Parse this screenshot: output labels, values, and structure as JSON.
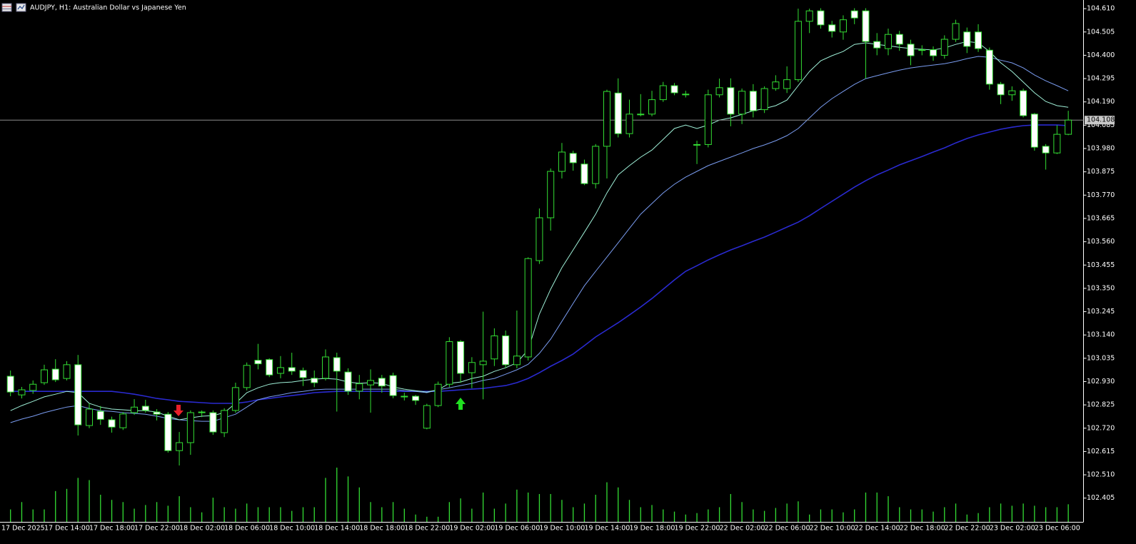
{
  "header": {
    "title": "AUDJPY, H1:  Australian Dollar vs Japanese Yen"
  },
  "chart_data": {
    "type": "candlestick",
    "categories": [
      "17 Dec 2025",
      null,
      null,
      "17 Dec 14:00",
      null,
      null,
      null,
      "17 Dec 18:00",
      null,
      null,
      null,
      "17 Dec 22:00",
      null,
      null,
      null,
      "18 Dec 02:00",
      null,
      null,
      null,
      "18 Dec 06:00",
      null,
      null,
      null,
      "18 Dec 10:00",
      null,
      null,
      null,
      "18 Dec 14:00",
      null,
      null,
      null,
      "18 Dec 18:00",
      null,
      null,
      null,
      "18 Dec 22:00",
      null,
      null,
      null,
      "19 Dec 02:00",
      null,
      null,
      null,
      "19 Dec 06:00",
      null,
      null,
      null,
      "19 Dec 10:00",
      null,
      null,
      null,
      "19 Dec 14:00",
      null,
      null,
      null,
      "19 Dec 18:00",
      null,
      null,
      null,
      "19 Dec 22:00",
      null,
      null,
      null,
      "22 Dec 02:00",
      null,
      null,
      null,
      "22 Dec 06:00",
      null,
      null,
      null,
      "22 Dec 10:00",
      null,
      null,
      null,
      "22 Dec 14:00",
      null,
      null,
      null,
      "22 Dec 18:00",
      null,
      null,
      null,
      "22 Dec 22:00",
      null,
      null,
      null,
      "23 Dec 02:00",
      null,
      null,
      null,
      "23 Dec 06:00",
      null,
      null,
      null
    ],
    "open": [
      102.954,
      102.87,
      102.89,
      102.925,
      102.986,
      102.944,
      103.006,
      102.732,
      102.796,
      102.758,
      102.722,
      102.79,
      102.819,
      102.793,
      102.783,
      102.619,
      102.655,
      102.79,
      102.79,
      102.7,
      102.8,
      102.903,
      103.026,
      103.029,
      102.967,
      102.993,
      102.98,
      102.945,
      102.945,
      103.038,
      102.973,
      102.887,
      102.915,
      102.945,
      102.957,
      102.864,
      102.864,
      102.72,
      102.822,
      102.918,
      103.11,
      102.97,
      103.006,
      103.032,
      103.136,
      103.006,
      103.041,
      103.475,
      103.668,
      103.877,
      103.958,
      103.91,
      103.822,
      103.99,
      104.23,
      104.047,
      104.135,
      104.135,
      104.2,
      104.263,
      104.225,
      103.998,
      103.998,
      104.222,
      104.254,
      104.135,
      104.238,
      104.155,
      104.25,
      104.25,
      104.29,
      104.553,
      104.6,
      104.537,
      104.505,
      104.6,
      104.6,
      104.462,
      104.43,
      104.494,
      104.45,
      104.425,
      104.425,
      104.4,
      104.472,
      104.505,
      104.505,
      104.423,
      104.27,
      104.222,
      104.24,
      104.135,
      103.99,
      103.96,
      104.044
    ],
    "high": [
      102.98,
      102.906,
      102.935,
      103.006,
      103.031,
      103.022,
      103.05,
      102.832,
      102.82,
      102.772,
      102.793,
      102.851,
      102.848,
      102.806,
      102.793,
      102.703,
      102.8,
      102.8,
      102.8,
      102.81,
      102.925,
      103.016,
      103.1,
      103.035,
      103.045,
      103.06,
      102.993,
      102.98,
      103.075,
      103.06,
      102.99,
      102.96,
      102.985,
      102.96,
      102.97,
      102.88,
      102.87,
      102.83,
      102.93,
      103.13,
      103.117,
      103.04,
      103.245,
      103.17,
      103.16,
      103.25,
      103.49,
      103.71,
      103.89,
      104.005,
      103.97,
      103.93,
      104.0,
      104.245,
      104.296,
      104.2,
      104.225,
      104.24,
      104.28,
      104.275,
      104.24,
      104.015,
      104.245,
      104.295,
      104.296,
      104.25,
      104.27,
      104.26,
      104.31,
      104.35,
      104.61,
      104.61,
      104.612,
      104.555,
      104.58,
      104.612,
      104.612,
      104.5,
      104.52,
      104.51,
      104.47,
      104.445,
      104.44,
      104.49,
      104.56,
      104.525,
      104.54,
      104.435,
      104.28,
      104.26,
      104.25,
      104.14,
      104.0,
      104.085,
      104.15
    ],
    "low": [
      102.864,
      102.854,
      102.875,
      102.915,
      102.928,
      102.935,
      102.687,
      102.72,
      102.735,
      102.7,
      102.712,
      102.78,
      102.79,
      102.755,
      102.61,
      102.552,
      102.6,
      102.77,
      102.69,
      102.68,
      102.79,
      102.89,
      102.985,
      102.95,
      102.945,
      102.96,
      102.91,
      102.905,
      102.935,
      102.795,
      102.87,
      102.85,
      102.79,
      102.88,
      102.855,
      102.845,
      102.825,
      102.715,
      102.815,
      102.905,
      102.925,
      102.9,
      102.85,
      103.0,
      102.99,
      102.99,
      103.025,
      103.46,
      103.61,
      103.845,
      103.88,
      103.815,
      103.8,
      103.845,
      104.03,
      104.03,
      104.125,
      104.125,
      104.19,
      104.22,
      104.21,
      103.91,
      103.985,
      104.21,
      104.08,
      104.09,
      104.12,
      104.14,
      104.24,
      104.23,
      104.28,
      104.5,
      104.52,
      104.48,
      104.47,
      104.54,
      104.295,
      104.4,
      104.4,
      104.42,
      104.355,
      104.4,
      104.375,
      104.385,
      104.46,
      104.41,
      104.415,
      104.245,
      104.18,
      104.195,
      104.12,
      103.97,
      103.885,
      103.955,
      104.04
    ],
    "close": [
      102.883,
      102.893,
      102.918,
      102.983,
      102.938,
      103.006,
      102.735,
      102.806,
      102.76,
      102.725,
      102.784,
      102.815,
      102.8,
      102.783,
      102.619,
      102.655,
      102.79,
      102.793,
      102.703,
      102.8,
      102.903,
      103.003,
      103.01,
      102.96,
      102.993,
      102.977,
      102.948,
      102.925,
      103.041,
      102.977,
      102.887,
      102.92,
      102.935,
      102.91,
      102.867,
      102.864,
      102.845,
      102.822,
      102.918,
      103.11,
      102.967,
      103.016,
      103.022,
      103.136,
      103.006,
      103.045,
      103.484,
      103.668,
      103.877,
      103.964,
      103.916,
      103.822,
      103.99,
      104.237,
      104.047,
      104.135,
      104.135,
      104.2,
      104.263,
      104.231,
      104.225,
      103.995,
      104.222,
      104.254,
      104.135,
      104.238,
      104.15,
      104.25,
      104.28,
      104.29,
      104.553,
      104.6,
      104.537,
      104.508,
      104.56,
      104.568,
      104.462,
      104.433,
      104.494,
      104.45,
      104.398,
      104.423,
      104.398,
      104.472,
      104.543,
      104.44,
      104.43,
      104.27,
      104.222,
      104.24,
      104.128,
      103.986,
      103.96,
      104.044,
      104.108
    ],
    "candle_color": "#33dd33",
    "bull_fill": "#000000",
    "bear_fill": "#ffffff",
    "moving_averages": [
      {
        "color": "#2a2ad0",
        "values": [
          102.886,
          102.886,
          102.886,
          102.886,
          102.886,
          102.886,
          102.886,
          102.886,
          102.886,
          102.886,
          102.88,
          102.873,
          102.864,
          102.854,
          102.848,
          102.841,
          102.838,
          102.835,
          102.832,
          102.832,
          102.832,
          102.838,
          102.848,
          102.854,
          102.861,
          102.867,
          102.873,
          102.88,
          102.883,
          102.886,
          102.886,
          102.886,
          102.886,
          102.886,
          102.886,
          102.886,
          102.886,
          102.886,
          102.886,
          102.889,
          102.893,
          102.896,
          102.899,
          102.906,
          102.912,
          102.925,
          102.944,
          102.97,
          102.999,
          103.025,
          103.054,
          103.092,
          103.131,
          103.163,
          103.195,
          103.23,
          103.266,
          103.304,
          103.346,
          103.388,
          103.427,
          103.452,
          103.478,
          103.501,
          103.523,
          103.542,
          103.562,
          103.581,
          103.603,
          103.626,
          103.648,
          103.677,
          103.71,
          103.742,
          103.774,
          103.806,
          103.835,
          103.861,
          103.883,
          103.906,
          103.925,
          103.944,
          103.964,
          103.983,
          104.005,
          104.025,
          104.041,
          104.054,
          104.067,
          104.076,
          104.083,
          104.086,
          104.086,
          104.086,
          104.083
        ]
      },
      {
        "color": "#7a9cf0",
        "values": [
          102.745,
          102.761,
          102.774,
          102.79,
          102.803,
          102.815,
          102.822,
          102.809,
          102.799,
          102.796,
          102.79,
          102.787,
          102.783,
          102.774,
          102.764,
          102.758,
          102.754,
          102.751,
          102.751,
          102.767,
          102.783,
          102.815,
          102.848,
          102.861,
          102.87,
          102.88,
          102.886,
          102.893,
          102.896,
          102.896,
          102.896,
          102.896,
          102.896,
          102.896,
          102.896,
          102.889,
          102.886,
          102.88,
          102.893,
          102.902,
          102.912,
          102.922,
          102.935,
          102.944,
          102.963,
          102.983,
          103.008,
          103.057,
          103.121,
          103.201,
          103.282,
          103.362,
          103.427,
          103.491,
          103.555,
          103.62,
          103.684,
          103.732,
          103.78,
          103.819,
          103.851,
          103.877,
          103.903,
          103.922,
          103.941,
          103.96,
          103.98,
          103.996,
          104.015,
          104.038,
          104.07,
          104.118,
          104.166,
          104.205,
          104.237,
          104.269,
          104.295,
          104.308,
          104.321,
          104.333,
          104.343,
          104.35,
          104.356,
          104.362,
          104.372,
          104.385,
          104.395,
          104.391,
          104.378,
          104.366,
          104.343,
          104.311,
          104.285,
          104.263,
          104.24
        ]
      },
      {
        "color": "#9ff0d8",
        "values": [
          102.799,
          102.822,
          102.841,
          102.861,
          102.873,
          102.886,
          102.88,
          102.832,
          102.815,
          102.806,
          102.803,
          102.799,
          102.799,
          102.793,
          102.774,
          102.758,
          102.767,
          102.774,
          102.777,
          102.79,
          102.832,
          102.88,
          102.902,
          102.918,
          102.925,
          102.928,
          102.935,
          102.941,
          102.944,
          102.941,
          102.928,
          102.922,
          102.925,
          102.922,
          102.906,
          102.896,
          102.889,
          102.883,
          102.893,
          102.922,
          102.928,
          102.944,
          102.954,
          102.976,
          102.992,
          103.015,
          103.073,
          103.234,
          103.346,
          103.443,
          103.523,
          103.603,
          103.684,
          103.78,
          103.861,
          103.903,
          103.941,
          103.973,
          104.021,
          104.07,
          104.086,
          104.07,
          104.086,
          104.108,
          104.118,
          104.134,
          104.15,
          104.16,
          104.173,
          104.198,
          104.263,
          104.327,
          104.375,
          104.398,
          104.417,
          104.449,
          104.456,
          104.449,
          104.443,
          104.436,
          104.43,
          104.427,
          104.424,
          104.433,
          104.449,
          104.462,
          104.456,
          104.417,
          104.366,
          104.327,
          104.279,
          104.231,
          104.192,
          104.173,
          104.166
        ]
      }
    ],
    "volumes": {
      "color": "#33dd33",
      "values": [
        17,
        27,
        17,
        17,
        42,
        45,
        60,
        57,
        37,
        30,
        27,
        18,
        23,
        27,
        22,
        35,
        20,
        13,
        33,
        20,
        18,
        25,
        20,
        20,
        20,
        15,
        20,
        20,
        60,
        74,
        62,
        47,
        27,
        20,
        27,
        18,
        10,
        7,
        7,
        27,
        32,
        18,
        40,
        18,
        25,
        44,
        40,
        38,
        38,
        30,
        20,
        25,
        37,
        54,
        47,
        30,
        20,
        23,
        17,
        14,
        10,
        12,
        17,
        20,
        38,
        27,
        17,
        15,
        19,
        25,
        28,
        10,
        17,
        17,
        13,
        17,
        40,
        40,
        35,
        20,
        17,
        17,
        14,
        20,
        25,
        10,
        12,
        20,
        25,
        22,
        25,
        22,
        20,
        20,
        24
      ]
    },
    "current_price": 104.108,
    "current_price_color": "#8c8c8c",
    "ylim": [
      102.298,
      104.649
    ],
    "yticks": [
      {
        "value": 104.61,
        "label": "104.610"
      },
      104.505,
      {
        "value": 104.4,
        "label": "104.400"
      },
      104.295,
      {
        "value": 104.19,
        "label": "104.190"
      },
      104.085,
      {
        "value": 103.98,
        "label": "103.980"
      },
      103.875,
      {
        "value": 103.77,
        "label": "103.770"
      },
      103.665,
      {
        "value": 103.56,
        "label": "103.560"
      },
      103.455,
      {
        "value": 103.35,
        "label": "103.350"
      },
      103.245,
      {
        "value": 103.14,
        "label": "103.140"
      },
      103.035,
      {
        "value": 102.93,
        "label": "102.930"
      },
      102.825,
      {
        "value": 102.72,
        "label": "102.720"
      },
      102.615,
      {
        "value": 102.51,
        "label": "102.510"
      },
      102.405
    ],
    "grid": false
  }
}
